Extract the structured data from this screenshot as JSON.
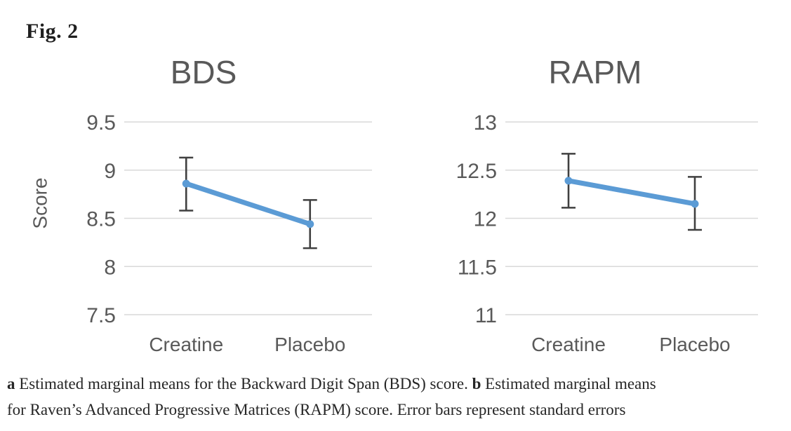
{
  "figure": {
    "label": "Fig. 2"
  },
  "colors": {
    "line": "#5B9BD5",
    "error_bar": "#404040",
    "gridline": "#D9D9D9",
    "chart_text": "#595959",
    "caption_text": "#262626"
  },
  "chart_data": [
    {
      "type": "line",
      "title": "BDS",
      "ylabel": "Score",
      "xlabel": "",
      "categories": [
        "Creatine",
        "Placebo"
      ],
      "series": [
        {
          "name": "BDS score",
          "values": [
            8.86,
            8.44
          ],
          "error_upper": [
            9.13,
            8.69
          ],
          "error_lower": [
            8.58,
            8.19
          ]
        }
      ],
      "yticks": [
        9.5,
        9,
        8.5,
        8,
        7.5
      ],
      "ylim": [
        7.5,
        9.5
      ],
      "grid": true,
      "legend": false,
      "error_bars": "standard errors"
    },
    {
      "type": "line",
      "title": "RAPM",
      "ylabel": "",
      "xlabel": "",
      "categories": [
        "Creatine",
        "Placebo"
      ],
      "series": [
        {
          "name": "RAPM score",
          "values": [
            12.39,
            12.15
          ],
          "error_upper": [
            12.67,
            12.43
          ],
          "error_lower": [
            12.11,
            11.88
          ]
        }
      ],
      "yticks": [
        13,
        12.5,
        12,
        11.5,
        11
      ],
      "ylim": [
        11,
        13
      ],
      "grid": true,
      "legend": false,
      "error_bars": "standard errors"
    }
  ],
  "caption": {
    "lines": [
      {
        "parts": [
          {
            "text": "a",
            "bold": true
          },
          {
            "text": " Estimated marginal means for the Backward Digit Span (BDS) score. ",
            "bold": false
          },
          {
            "text": "b",
            "bold": true
          },
          {
            "text": " Estimated marginal means",
            "bold": false
          }
        ]
      },
      {
        "parts": [
          {
            "text": "for Raven’s Advanced Progressive Matrices (RAPM) score. Error bars represent standard errors",
            "bold": false
          }
        ]
      }
    ]
  }
}
